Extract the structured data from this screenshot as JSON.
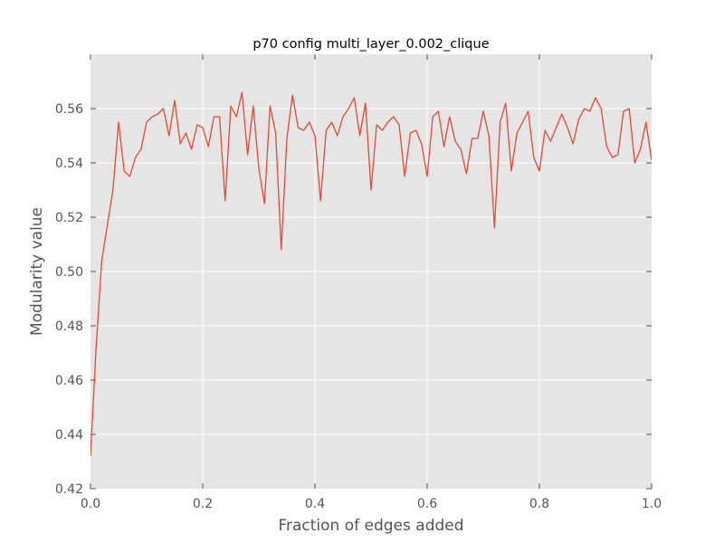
{
  "chart_data": {
    "type": "line",
    "title": "p70 config multi_layer_0.002_clique",
    "xlabel": "Fraction of edges added",
    "ylabel": "Modularity value",
    "xlim": [
      0.0,
      1.0
    ],
    "ylim": [
      0.42,
      0.58
    ],
    "xticks": [
      "0.0",
      "0.2",
      "0.4",
      "0.6",
      "0.8",
      "1.0"
    ],
    "yticks": [
      "0.42",
      "0.44",
      "0.46",
      "0.48",
      "0.50",
      "0.52",
      "0.54",
      "0.56"
    ],
    "grid": true,
    "legend": "none",
    "colors": {
      "line": "#E24A33",
      "plot_bg": "#E5E5E5",
      "grid": "#FFFFFF",
      "text": "#555555"
    },
    "series": [
      {
        "x": [
          0.0,
          0.01,
          0.02,
          0.03,
          0.04,
          0.05,
          0.06,
          0.07,
          0.08,
          0.09,
          0.1,
          0.11,
          0.12,
          0.13,
          0.14,
          0.15,
          0.16,
          0.17,
          0.18,
          0.19,
          0.2,
          0.21,
          0.22,
          0.23,
          0.24,
          0.25,
          0.26,
          0.27,
          0.28,
          0.29,
          0.3,
          0.31,
          0.32,
          0.33,
          0.34,
          0.35,
          0.36,
          0.37,
          0.38,
          0.39,
          0.4,
          0.41,
          0.42,
          0.43,
          0.44,
          0.45,
          0.46,
          0.47,
          0.48,
          0.49,
          0.5,
          0.51,
          0.52,
          0.53,
          0.54,
          0.55,
          0.56,
          0.57,
          0.58,
          0.59,
          0.6,
          0.61,
          0.62,
          0.63,
          0.64,
          0.65,
          0.66,
          0.67,
          0.68,
          0.69,
          0.7,
          0.71,
          0.72,
          0.73,
          0.74,
          0.75,
          0.76,
          0.77,
          0.78,
          0.79,
          0.8,
          0.81,
          0.82,
          0.83,
          0.84,
          0.85,
          0.86,
          0.87,
          0.88,
          0.89,
          0.9,
          0.91,
          0.92,
          0.93,
          0.94,
          0.95,
          0.96,
          0.97,
          0.98,
          0.99,
          1.0
        ],
        "y": [
          0.432,
          0.472,
          0.504,
          0.517,
          0.53,
          0.555,
          0.537,
          0.535,
          0.542,
          0.545,
          0.555,
          0.557,
          0.558,
          0.56,
          0.55,
          0.563,
          0.547,
          0.551,
          0.545,
          0.554,
          0.553,
          0.546,
          0.557,
          0.557,
          0.526,
          0.561,
          0.557,
          0.566,
          0.543,
          0.561,
          0.538,
          0.525,
          0.561,
          0.551,
          0.508,
          0.549,
          0.565,
          0.553,
          0.552,
          0.555,
          0.55,
          0.526,
          0.552,
          0.555,
          0.55,
          0.557,
          0.56,
          0.564,
          0.55,
          0.562,
          0.53,
          0.554,
          0.552,
          0.555,
          0.557,
          0.554,
          0.535,
          0.551,
          0.552,
          0.547,
          0.535,
          0.557,
          0.559,
          0.546,
          0.557,
          0.548,
          0.545,
          0.536,
          0.549,
          0.549,
          0.559,
          0.55,
          0.516,
          0.555,
          0.562,
          0.537,
          0.551,
          0.555,
          0.559,
          0.542,
          0.537,
          0.552,
          0.548,
          0.553,
          0.558,
          0.553,
          0.547,
          0.556,
          0.56,
          0.559,
          0.564,
          0.56,
          0.546,
          0.542,
          0.543,
          0.559,
          0.56,
          0.54,
          0.545,
          0.555,
          0.541
        ]
      }
    ]
  }
}
